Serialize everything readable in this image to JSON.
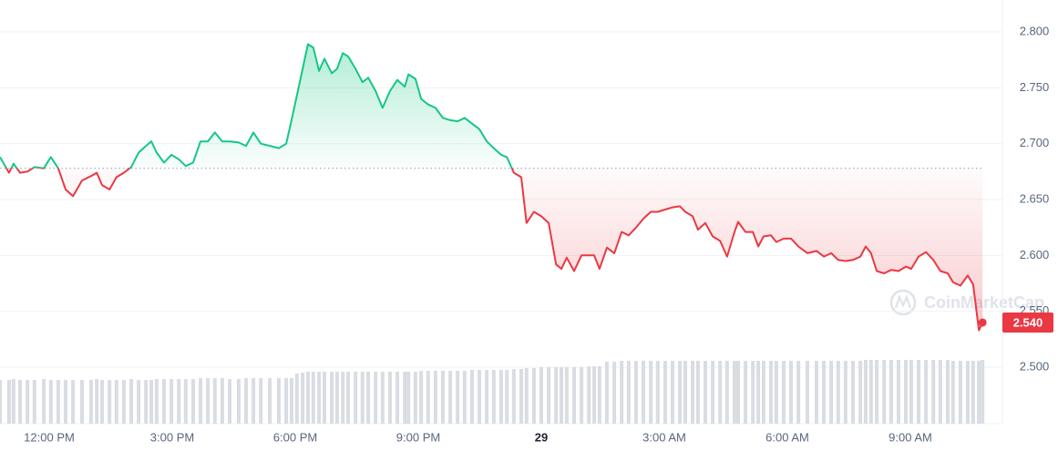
{
  "chart_data": {
    "type": "line",
    "x": [
      10.8,
      11.02,
      11.13,
      11.29,
      11.47,
      11.64,
      11.87,
      12.04,
      12.22,
      12.4,
      12.58,
      12.8,
      13.02,
      13.16,
      13.29,
      13.47,
      13.64,
      13.82,
      14,
      14.18,
      14.36,
      14.49,
      14.62,
      14.8,
      14.98,
      15.16,
      15.33,
      15.51,
      15.69,
      15.87,
      16.04,
      16.22,
      16.4,
      16.62,
      16.8,
      16.98,
      17.16,
      17.38,
      17.6,
      17.78,
      17.91,
      18.04,
      18.18,
      18.31,
      18.44,
      18.58,
      18.71,
      18.89,
      19.02,
      19.16,
      19.29,
      19.47,
      19.64,
      19.78,
      19.96,
      20.13,
      20.31,
      20.49,
      20.67,
      20.76,
      20.93,
      21.07,
      21.24,
      21.42,
      21.6,
      21.78,
      21.96,
      22.13,
      22.31,
      22.49,
      22.67,
      22.84,
      23.02,
      23.16,
      23.33,
      23.51,
      23.64,
      23.82,
      24,
      24.18,
      24.36,
      24.49,
      24.62,
      24.8,
      24.98,
      25.16,
      25.29,
      25.42,
      25.6,
      25.78,
      25.96,
      26.13,
      26.31,
      26.49,
      26.67,
      26.84,
      27.02,
      27.2,
      27.38,
      27.51,
      27.69,
      27.82,
      28,
      28.18,
      28.36,
      28.53,
      28.71,
      28.8,
      28.98,
      29.16,
      29.29,
      29.42,
      29.6,
      29.73,
      29.91,
      30.09,
      30.27,
      30.49,
      30.71,
      30.89,
      31.07,
      31.24,
      31.42,
      31.6,
      31.78,
      31.91,
      32.04,
      32.18,
      32.36,
      32.53,
      32.71,
      32.89,
      33.02,
      33.2,
      33.38,
      33.56,
      33.73,
      33.91,
      34.04,
      34.22,
      34.4,
      34.53,
      34.67,
      34.76
    ],
    "values": [
      2.688,
      2.674,
      2.682,
      2.674,
      2.675,
      2.679,
      2.678,
      2.688,
      2.678,
      2.659,
      2.653,
      2.667,
      2.671,
      2.674,
      2.663,
      2.659,
      2.67,
      2.674,
      2.679,
      2.692,
      2.698,
      2.702,
      2.692,
      2.683,
      2.69,
      2.686,
      2.68,
      2.683,
      2.702,
      2.702,
      2.71,
      2.702,
      2.702,
      2.701,
      2.698,
      2.71,
      2.7,
      2.698,
      2.696,
      2.7,
      2.721,
      2.743,
      2.767,
      2.789,
      2.786,
      2.765,
      2.776,
      2.763,
      2.767,
      2.781,
      2.778,
      2.767,
      2.755,
      2.759,
      2.747,
      2.732,
      2.747,
      2.757,
      2.751,
      2.762,
      2.758,
      2.74,
      2.735,
      2.732,
      2.723,
      2.721,
      2.72,
      2.723,
      2.718,
      2.713,
      2.702,
      2.696,
      2.69,
      2.688,
      2.674,
      2.67,
      2.629,
      2.639,
      2.635,
      2.629,
      2.592,
      2.588,
      2.598,
      2.586,
      2.6,
      2.6,
      2.6,
      2.588,
      2.607,
      2.602,
      2.621,
      2.618,
      2.625,
      2.633,
      2.639,
      2.639,
      2.641,
      2.643,
      2.644,
      2.639,
      2.635,
      2.623,
      2.629,
      2.617,
      2.613,
      2.599,
      2.621,
      2.63,
      2.621,
      2.621,
      2.608,
      2.617,
      2.618,
      2.612,
      2.615,
      2.615,
      2.608,
      2.602,
      2.604,
      2.599,
      2.602,
      2.596,
      2.595,
      2.596,
      2.599,
      2.608,
      2.602,
      2.586,
      2.584,
      2.587,
      2.586,
      2.59,
      2.588,
      2.599,
      2.603,
      2.596,
      2.586,
      2.584,
      2.576,
      2.573,
      2.582,
      2.574,
      2.533,
      2.54
    ],
    "volume": [
      48,
      48,
      49,
      48,
      48,
      48,
      49,
      48,
      48,
      48,
      48,
      48,
      48,
      49,
      48,
      48,
      48,
      48,
      49,
      48,
      48,
      48,
      49,
      49,
      49,
      49,
      49,
      49,
      50,
      50,
      50,
      50,
      49,
      49,
      50,
      50,
      50,
      50,
      50,
      50,
      50,
      55,
      56,
      57,
      57,
      57,
      57,
      57,
      57,
      57,
      57,
      57,
      57,
      57,
      57,
      57,
      57,
      57,
      57,
      57,
      57,
      58,
      58,
      58,
      58,
      58,
      58,
      58,
      59,
      59,
      59,
      59,
      59,
      59,
      60,
      60,
      61,
      61,
      62,
      62,
      62,
      62,
      62,
      62,
      62,
      63,
      63,
      63,
      68,
      68,
      69,
      69,
      69,
      69,
      69,
      69,
      69,
      69,
      69,
      69,
      69,
      69,
      69,
      69,
      69,
      69,
      69,
      69,
      69,
      69,
      69,
      69,
      69,
      69,
      69,
      69,
      69,
      69,
      69,
      69,
      69,
      69,
      69,
      69,
      69,
      70,
      70,
      70,
      70,
      70,
      70,
      70,
      70,
      70,
      70,
      70,
      70,
      70,
      69,
      69,
      69,
      69,
      69,
      70
    ],
    "volume_lim": [
      0,
      75
    ],
    "volume_color": "#d9dde3",
    "baseline": 2.678,
    "up_color": "#16c784",
    "down_color": "#ea3943",
    "current_price": 2.54,
    "current_price_label": "2.540",
    "watermark": "CoinMarketCap",
    "xlim": [
      10.8,
      34.8
    ],
    "xticks": [
      {
        "value": 12,
        "label": "12:00 PM"
      },
      {
        "value": 15,
        "label": "3:00 PM"
      },
      {
        "value": 18,
        "label": "6:00 PM"
      },
      {
        "value": 21,
        "label": "9:00 PM"
      },
      {
        "value": 24,
        "label": "29"
      },
      {
        "value": 27,
        "label": "3:00 AM"
      },
      {
        "value": 30,
        "label": "6:00 AM"
      },
      {
        "value": 33,
        "label": "9:00 AM"
      }
    ],
    "ylim": [
      2.4495,
      2.8285
    ],
    "yticks": [
      {
        "value": 2.5,
        "label": "2.500"
      },
      {
        "value": 2.55,
        "label": "2.550"
      },
      {
        "value": 2.6,
        "label": "2.600"
      },
      {
        "value": 2.65,
        "label": "2.650"
      },
      {
        "value": 2.7,
        "label": "2.700"
      },
      {
        "value": 2.75,
        "label": "2.750"
      },
      {
        "value": 2.8,
        "label": "2.800"
      }
    ],
    "grid": true
  }
}
